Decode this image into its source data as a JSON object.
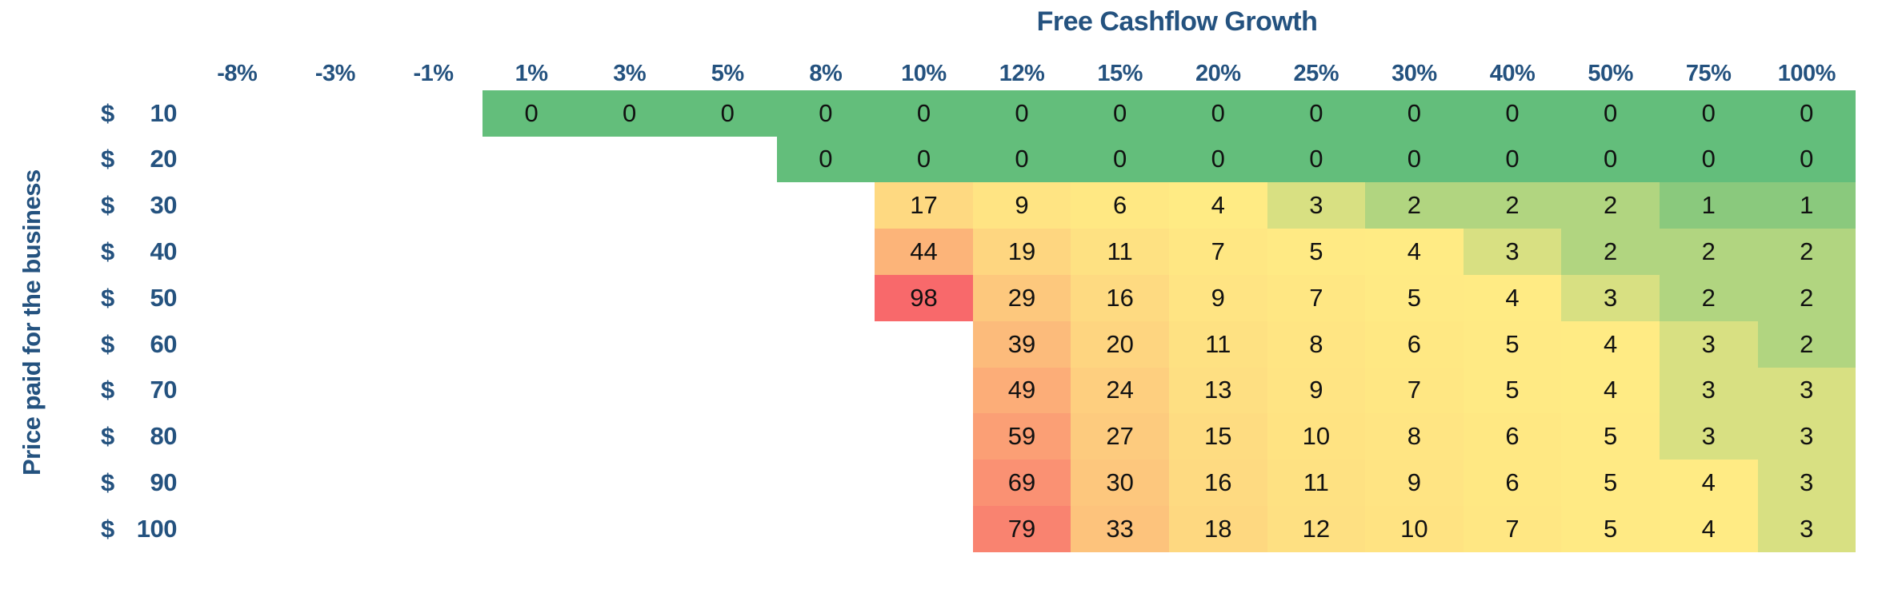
{
  "colors": {
    "heading_text": "#24527F",
    "cell_text": "#111111",
    "background": "#FFFFFF"
  },
  "chart_data": {
    "type": "heatmap",
    "title": "Free Cashflow Growth",
    "ylabel": "Price paid for the business",
    "xlabel": "",
    "grid": false,
    "columns": [
      "-8%",
      "-3%",
      "-1%",
      "1%",
      "3%",
      "5%",
      "8%",
      "10%",
      "12%",
      "15%",
      "20%",
      "25%",
      "30%",
      "40%",
      "50%",
      "75%",
      "100%"
    ],
    "row_label_prefix": "$",
    "row_amounts": [
      "10",
      "20",
      "30",
      "40",
      "50",
      "60",
      "70",
      "80",
      "90",
      "100"
    ],
    "values": [
      [
        null,
        null,
        null,
        0,
        0,
        0,
        0,
        0,
        0,
        0,
        0,
        0,
        0,
        0,
        0,
        0,
        0
      ],
      [
        null,
        null,
        null,
        null,
        null,
        null,
        0,
        0,
        0,
        0,
        0,
        0,
        0,
        0,
        0,
        0,
        0
      ],
      [
        null,
        null,
        null,
        null,
        null,
        null,
        null,
        17,
        9,
        6,
        4,
        3,
        2,
        2,
        2,
        1,
        1
      ],
      [
        null,
        null,
        null,
        null,
        null,
        null,
        null,
        44,
        19,
        11,
        7,
        5,
        4,
        3,
        2,
        2,
        2
      ],
      [
        null,
        null,
        null,
        null,
        null,
        null,
        null,
        98,
        29,
        16,
        9,
        7,
        5,
        4,
        3,
        2,
        2
      ],
      [
        null,
        null,
        null,
        null,
        null,
        null,
        null,
        null,
        39,
        20,
        11,
        8,
        6,
        5,
        4,
        3,
        2
      ],
      [
        null,
        null,
        null,
        null,
        null,
        null,
        null,
        null,
        49,
        24,
        13,
        9,
        7,
        5,
        4,
        3,
        3
      ],
      [
        null,
        null,
        null,
        null,
        null,
        null,
        null,
        null,
        59,
        27,
        15,
        10,
        8,
        6,
        5,
        3,
        3
      ],
      [
        null,
        null,
        null,
        null,
        null,
        null,
        null,
        null,
        69,
        30,
        16,
        11,
        9,
        6,
        5,
        4,
        3
      ],
      [
        null,
        null,
        null,
        null,
        null,
        null,
        null,
        null,
        79,
        33,
        18,
        12,
        10,
        7,
        5,
        4,
        3
      ]
    ],
    "color_scale": {
      "min_value": 0,
      "min_color": "#63BE7B",
      "mid_value": 4,
      "mid_color": "#FFEB84",
      "max_value": 98,
      "max_color": "#F8696B"
    },
    "legend": null
  }
}
